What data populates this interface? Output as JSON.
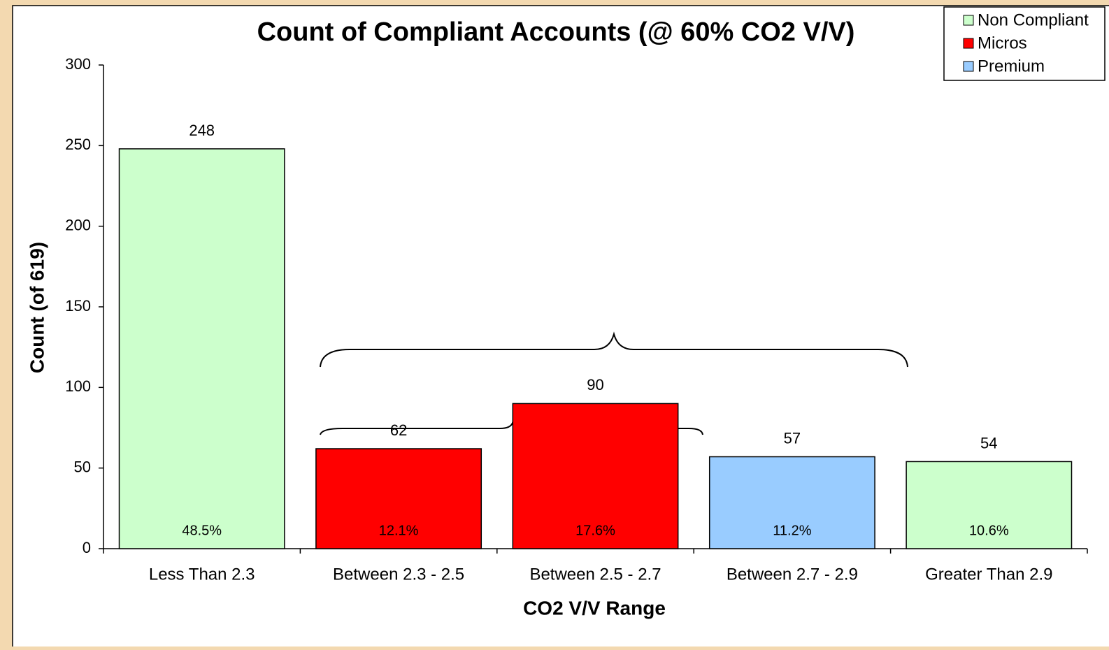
{
  "chart_data": {
    "type": "bar",
    "title": "Count of Compliant Accounts (@ 60% CO2 V/V)",
    "x_label": "CO2 V/V Range",
    "y_label": "Count (of 619)",
    "categories": [
      "Less Than 2.3",
      "Between 2.3 - 2.5",
      "Between 2.5 - 2.7",
      "Between 2.7 - 2.9",
      "Greater Than 2.9"
    ],
    "values": [
      248,
      62,
      90,
      57,
      54
    ],
    "colors": [
      "#ccffcc",
      "#ff0000",
      "#ff0000",
      "#99ccff",
      "#ccffcc"
    ],
    "share_labels": [
      "48.5%",
      "12.1%",
      "17.6%",
      "11.2%",
      "10.6%"
    ],
    "legend": [
      {
        "name": "Non Compliant",
        "color": "#ccffcc"
      },
      {
        "name": "Micros",
        "color": "#ff0000"
      },
      {
        "name": "Premium",
        "color": "#99ccff"
      }
    ],
    "legend_position": "top-right",
    "ylim": [
      0,
      300
    ],
    "yticks": [
      0,
      50,
      100,
      150,
      200,
      250,
      300
    ],
    "grid": false
  }
}
